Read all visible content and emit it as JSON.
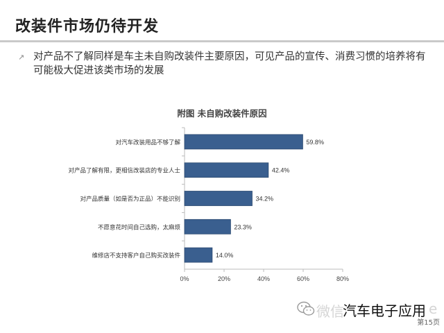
{
  "slide": {
    "title": "改装件市场仍待开发",
    "bullet_icon": "arrow-up-right-icon",
    "description": "对产品不了解同样是车主未自购改装件主要原因，可见产品的宣传、消费习惯的培养将有可能极大促进该类市场的发展",
    "page_number": "第15页"
  },
  "watermark": {
    "icon": "wechat-icon",
    "prefix": "微信",
    "text": "汽车电子应用",
    "suffix": "e"
  },
  "colors": {
    "bar": "#3a5f8f",
    "bar_edge": "#2c4a70",
    "axis": "#bbbbbb"
  },
  "chart_data": {
    "type": "bar",
    "orientation": "horizontal",
    "title": "附图  未自购改装件原因",
    "categories": [
      "对汽车改装用品不够了解",
      "对产品了解有限，更相信改装店的专业人士",
      "对产品质量（如是否为正品）不能识别",
      "不愿意花时间自己选购，太麻烦",
      "维修店不支持客户自己购买改装件"
    ],
    "values": [
      59.8,
      42.4,
      34.2,
      23.3,
      14.0
    ],
    "value_labels": [
      "59.8%",
      "42.4%",
      "34.2%",
      "23.3%",
      "14.0%"
    ],
    "xlim": [
      0,
      80
    ],
    "xticks": [
      "0%",
      "20%",
      "40%",
      "60%",
      "80%"
    ],
    "grid": false,
    "legend": false
  }
}
